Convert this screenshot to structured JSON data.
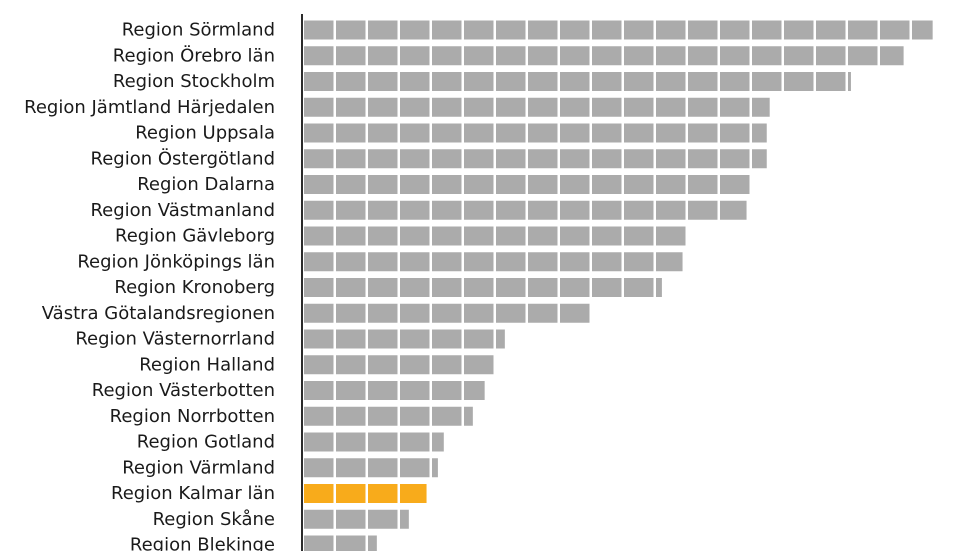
{
  "chart_data": {
    "type": "bar",
    "orientation": "horizontal",
    "title": "",
    "xlabel": "",
    "ylabel": "",
    "unit_per_block": 1,
    "categories": [
      "Region Sörmland",
      "Region Örebro län",
      "Region Stockholm",
      "Region Jämtland Härjedalen",
      "Region Uppsala",
      "Region Östergötland",
      "Region Dalarna",
      "Region Västmanland",
      "Region Gävleborg",
      "Region Jönköpings län",
      "Region Kronoberg",
      "Västra Götalandsregionen",
      "Region Västernorrland",
      "Region Halland",
      "Region Västerbotten",
      "Region Norrbotten",
      "Region Gotland",
      "Region Värmland",
      "Region Kalmar län",
      "Region Skåne",
      "Region Blekinge"
    ],
    "values": [
      19.7,
      18.8,
      17.1,
      14.6,
      14.5,
      14.5,
      14.0,
      13.9,
      12.0,
      11.9,
      11.2,
      9.0,
      6.3,
      6.0,
      5.7,
      5.3,
      4.4,
      4.2,
      3.9,
      3.3,
      2.3
    ],
    "highlight": "Region Kalmar län",
    "colors": {
      "bar": "#ababab",
      "highlight": "#f8ab1b",
      "axis": "#2b2b2b",
      "label": "#1a1a1a"
    }
  }
}
